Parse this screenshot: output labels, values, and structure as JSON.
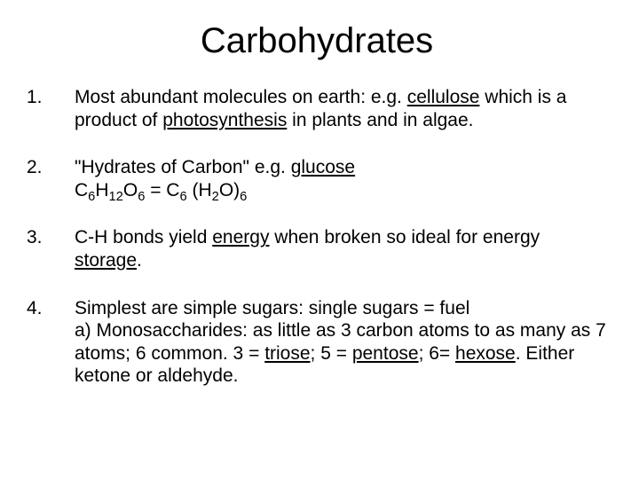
{
  "title": "Carbohydrates",
  "text_color": "#000000",
  "background_color": "#ffffff",
  "title_fontsize": 40,
  "body_fontsize": 21,
  "items": [
    {
      "num": "1.",
      "parts": [
        {
          "t": "Most abundant molecules on earth: e.g. "
        },
        {
          "t": "cellulose",
          "u": true
        },
        {
          "t": " which is a product of "
        },
        {
          "t": "photosynthesis",
          "u": true
        },
        {
          "t": " in plants and in algae."
        }
      ]
    },
    {
      "num": "2.",
      "lines": [
        [
          {
            "t": "\"Hydrates of Carbon\"  e.g. "
          },
          {
            "t": "glucose",
            "u": true
          }
        ],
        [
          {
            "t": " C"
          },
          {
            "t": "6",
            "sub": true
          },
          {
            "t": "H"
          },
          {
            "t": "12",
            "sub": true
          },
          {
            "t": "O"
          },
          {
            "t": "6",
            "sub": true
          },
          {
            "t": " = C"
          },
          {
            "t": "6",
            "sub": true
          },
          {
            "t": " (H"
          },
          {
            "t": "2",
            "sub": true
          },
          {
            "t": "O)"
          },
          {
            "t": "6",
            "sub": true
          }
        ]
      ]
    },
    {
      "num": "3.",
      "parts": [
        {
          "t": "C-H bonds yield "
        },
        {
          "t": "energy",
          "u": true
        },
        {
          "t": " when broken so ideal for energy "
        },
        {
          "t": "storage",
          "u": true
        },
        {
          "t": "."
        }
      ]
    },
    {
      "num": "4.",
      "parts": [
        {
          "t": "Simplest are simple sugars:  single sugars = fuel"
        },
        {
          "br": true
        },
        {
          "t": "a)  Monosaccharides:  as little as 3 carbon atoms to as many as 7 atoms; 6 common. 3 = "
        },
        {
          "t": "triose",
          "u": true
        },
        {
          "t": "; 5 = "
        },
        {
          "t": "pentose",
          "u": true
        },
        {
          "t": "; 6= "
        },
        {
          "t": "hexose",
          "u": true
        },
        {
          "t": ".  Either ketone or aldehyde."
        }
      ]
    }
  ]
}
